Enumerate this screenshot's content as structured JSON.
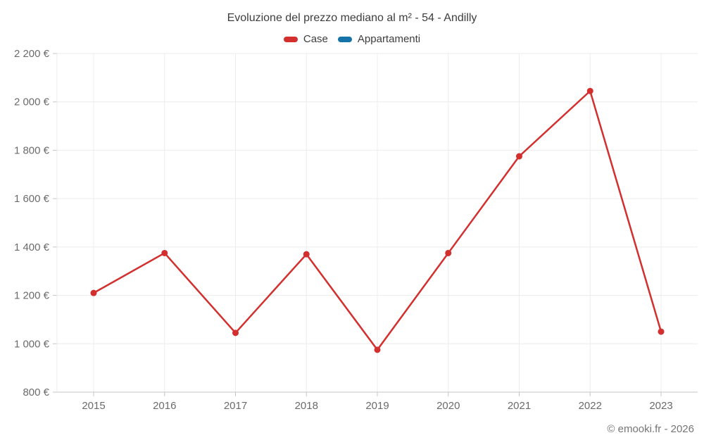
{
  "title": "Evoluzione del prezzo mediano al m² - 54 - Andilly",
  "legend": {
    "items": [
      {
        "label": "Case",
        "color": "#d32f2f"
      },
      {
        "label": "Appartamenti",
        "color": "#1673a8"
      }
    ]
  },
  "footer": "© emooki.fr - 2026",
  "colors": {
    "background": "#ffffff",
    "title_text": "#3d3d3d",
    "axis_text": "#6b6b6b",
    "gridline": "#ececec",
    "axis_line": "#c6c6c6",
    "case_series": "#d32f2f",
    "appartamenti_series": "#1673a8"
  },
  "chart_data": {
    "type": "line",
    "title": "Evoluzione del prezzo mediano al m² - 54 - Andilly",
    "x": [
      "2015",
      "2016",
      "2017",
      "2018",
      "2019",
      "2020",
      "2021",
      "2022",
      "2023"
    ],
    "series": [
      {
        "name": "Case",
        "color": "#d32f2f",
        "values": [
          1210,
          1375,
          1045,
          1370,
          975,
          1375,
          1775,
          2045,
          1050
        ]
      },
      {
        "name": "Appartamenti",
        "color": "#1673a8",
        "values": []
      }
    ],
    "ylim": [
      800,
      2200
    ],
    "y_ticks": [
      {
        "value": 800,
        "label": "800 €"
      },
      {
        "value": 1000,
        "label": "1 000 €"
      },
      {
        "value": 1200,
        "label": "1 200 €"
      },
      {
        "value": 1400,
        "label": "1 400 €"
      },
      {
        "value": 1600,
        "label": "1 600 €"
      },
      {
        "value": 1800,
        "label": "1 800 €"
      },
      {
        "value": 2000,
        "label": "2 000 €"
      },
      {
        "value": 2200,
        "label": "2 200 €"
      }
    ],
    "xlabel": "",
    "ylabel": "",
    "grid": true,
    "legend_position": "top"
  }
}
